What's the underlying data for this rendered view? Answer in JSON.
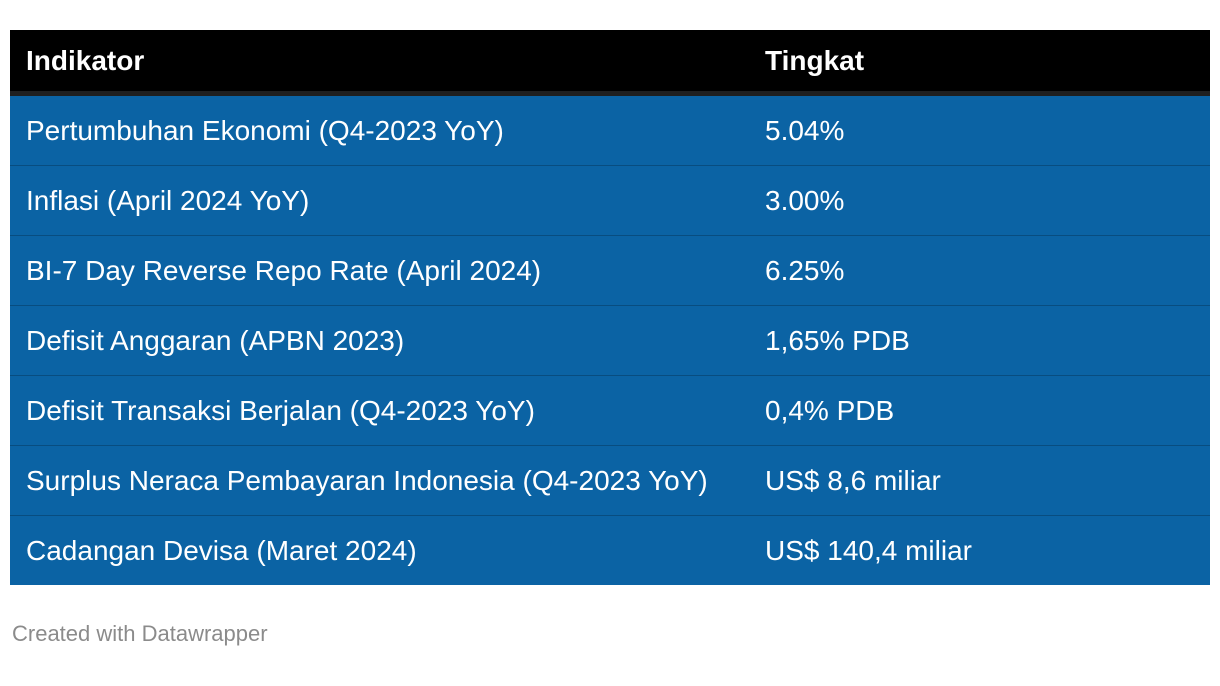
{
  "chart_data": {
    "type": "table",
    "columns": [
      "Indikator",
      "Tingkat"
    ],
    "rows": [
      {
        "indikator": "Pertumbuhan Ekonomi (Q4-2023 YoY)",
        "tingkat": "5.04%"
      },
      {
        "indikator": "Inflasi (April 2024 YoY)",
        "tingkat": "3.00%"
      },
      {
        "indikator": "BI-7 Day Reverse Repo Rate (April 2024)",
        "tingkat": "6.25%"
      },
      {
        "indikator": "Defisit Anggaran (APBN 2023)",
        "tingkat": "1,65% PDB"
      },
      {
        "indikator": "Defisit Transaksi Berjalan (Q4-2023 YoY)",
        "tingkat": "0,4% PDB"
      },
      {
        "indikator": "Surplus Neraca Pembayaran Indonesia (Q4-2023 YoY)",
        "tingkat": "US$ 8,6 miliar"
      },
      {
        "indikator": "Cadangan Devisa (Maret 2024)",
        "tingkat": "US$ 140,4 miliar"
      }
    ]
  },
  "footer": {
    "credit": "Created with Datawrapper"
  },
  "colors": {
    "header_bg": "#000000",
    "header_text": "#ffffff",
    "header_border": "#1f1f1f",
    "row_bg": "#0b63a4",
    "row_text": "#ffffff",
    "credit_text": "#8b8b8b",
    "page_bg": "#ffffff"
  }
}
